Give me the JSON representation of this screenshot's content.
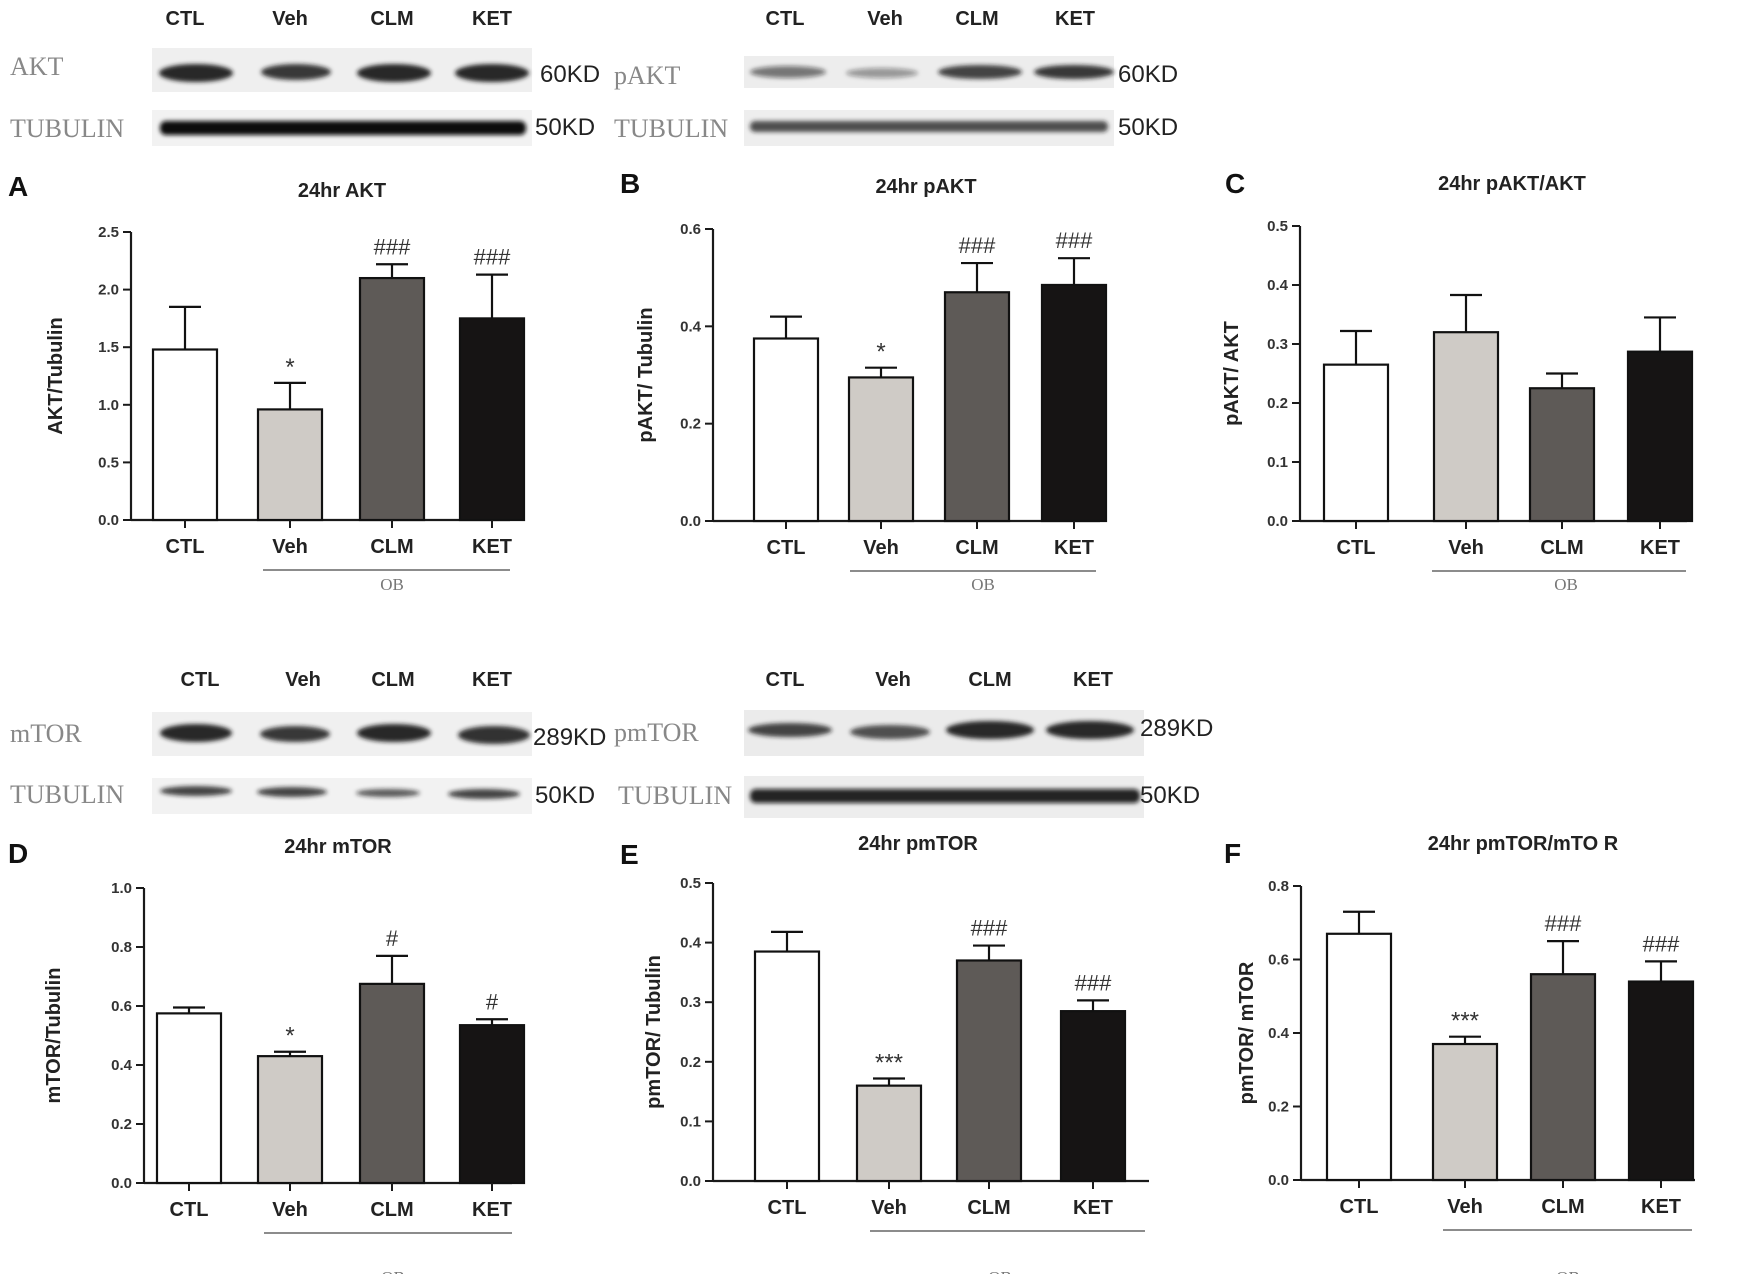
{
  "colors": {
    "CTL": "#ffffff",
    "Veh": "#cfcbc6",
    "CLM": "#5e5a57",
    "KET": "#161414",
    "axis": "#1a1a1a"
  },
  "blot_groups": [
    "CTL",
    "Veh",
    "CLM",
    "KET"
  ],
  "blots": [
    {
      "label": "AKT",
      "size": "60KD"
    },
    {
      "label": "TUBULIN",
      "size": "50KD"
    },
    {
      "label": "pAKT",
      "size": "60KD"
    },
    {
      "label": "TUBULIN",
      "size": "50KD"
    },
    {
      "label": "mTOR",
      "size": "289KD"
    },
    {
      "label": "TUBULIN",
      "size": "50KD"
    },
    {
      "label": "pmTOR",
      "size": "289KD"
    },
    {
      "label": "TUBULIN",
      "size": "50KD"
    }
  ],
  "chart_data": [
    {
      "panel": "A",
      "type": "bar",
      "title": "24hr  AKT",
      "ylabel": "AKT/Tubulin",
      "categories": [
        "CTL",
        "Veh",
        "CLM",
        "KET"
      ],
      "group_label": "OB",
      "ylim": [
        0,
        2.5
      ],
      "yticks": [
        "0.0",
        "0.5",
        "1.0",
        "1.5",
        "2.0",
        "2.5"
      ],
      "values": [
        1.48,
        0.96,
        2.1,
        1.75
      ],
      "errors": [
        0.37,
        0.23,
        0.12,
        0.38
      ],
      "annotations": [
        "",
        "*",
        "###",
        "###"
      ]
    },
    {
      "panel": "B",
      "type": "bar",
      "title": "24hr  pAKT",
      "ylabel": "pAKT/ Tubulin",
      "categories": [
        "CTL",
        "Veh",
        "CLM",
        "KET"
      ],
      "group_label": "OB",
      "ylim": [
        0,
        0.6
      ],
      "yticks": [
        "0.0",
        "0.2",
        "0.4",
        "0.6"
      ],
      "values": [
        0.375,
        0.295,
        0.47,
        0.485
      ],
      "errors": [
        0.045,
        0.02,
        0.06,
        0.055
      ],
      "annotations": [
        "",
        "*",
        "###",
        "###"
      ]
    },
    {
      "panel": "C",
      "type": "bar",
      "title": "24hr  pAKT/AKT",
      "ylabel": "pAKT/ AKT",
      "categories": [
        "CTL",
        "Veh",
        "CLM",
        "KET"
      ],
      "group_label": "OB",
      "ylim": [
        0,
        0.5
      ],
      "yticks": [
        "0.0",
        "0.1",
        "0.2",
        "0.3",
        "0.4",
        "0.5"
      ],
      "values": [
        0.265,
        0.32,
        0.225,
        0.287
      ],
      "errors": [
        0.057,
        0.063,
        0.025,
        0.058
      ],
      "annotations": [
        "",
        "",
        "",
        ""
      ]
    },
    {
      "panel": "D",
      "type": "bar",
      "title": "24hr  mTOR",
      "ylabel": "mTOR/Tubulin",
      "categories": [
        "CTL",
        "Veh",
        "CLM",
        "KET"
      ],
      "group_label": "OB",
      "ylim": [
        0,
        1.0
      ],
      "yticks": [
        "0.0",
        "0.2",
        "0.4",
        "0.6",
        "0.8",
        "1.0"
      ],
      "values": [
        0.575,
        0.43,
        0.675,
        0.535
      ],
      "errors": [
        0.02,
        0.015,
        0.095,
        0.02
      ],
      "annotations": [
        "",
        "*",
        "#",
        "#"
      ]
    },
    {
      "panel": "E",
      "type": "bar",
      "title": "24hr  pmTOR",
      "ylabel": "pmTOR/ Tubulin",
      "categories": [
        "CTL",
        "Veh",
        "CLM",
        "KET"
      ],
      "group_label": "OB",
      "ylim": [
        0,
        0.5
      ],
      "yticks": [
        "0.0",
        "0.1",
        "0.2",
        "0.3",
        "0.4",
        "0.5"
      ],
      "values": [
        0.385,
        0.16,
        0.37,
        0.285
      ],
      "errors": [
        0.033,
        0.012,
        0.025,
        0.018
      ],
      "annotations": [
        "",
        "***",
        "###",
        "###"
      ]
    },
    {
      "panel": "F",
      "type": "bar",
      "title": "24hr  pmTOR/mTO R",
      "ylabel": "pmTOR/ mTOR",
      "categories": [
        "CTL",
        "Veh",
        "CLM",
        "KET"
      ],
      "group_label": "OB",
      "ylim": [
        0,
        0.8
      ],
      "yticks": [
        "0.0",
        "0.2",
        "0.4",
        "0.6",
        "0.8"
      ],
      "values": [
        0.67,
        0.37,
        0.56,
        0.54
      ],
      "errors": [
        0.06,
        0.02,
        0.09,
        0.055
      ],
      "annotations": [
        "",
        "***",
        "###",
        "###"
      ]
    }
  ]
}
